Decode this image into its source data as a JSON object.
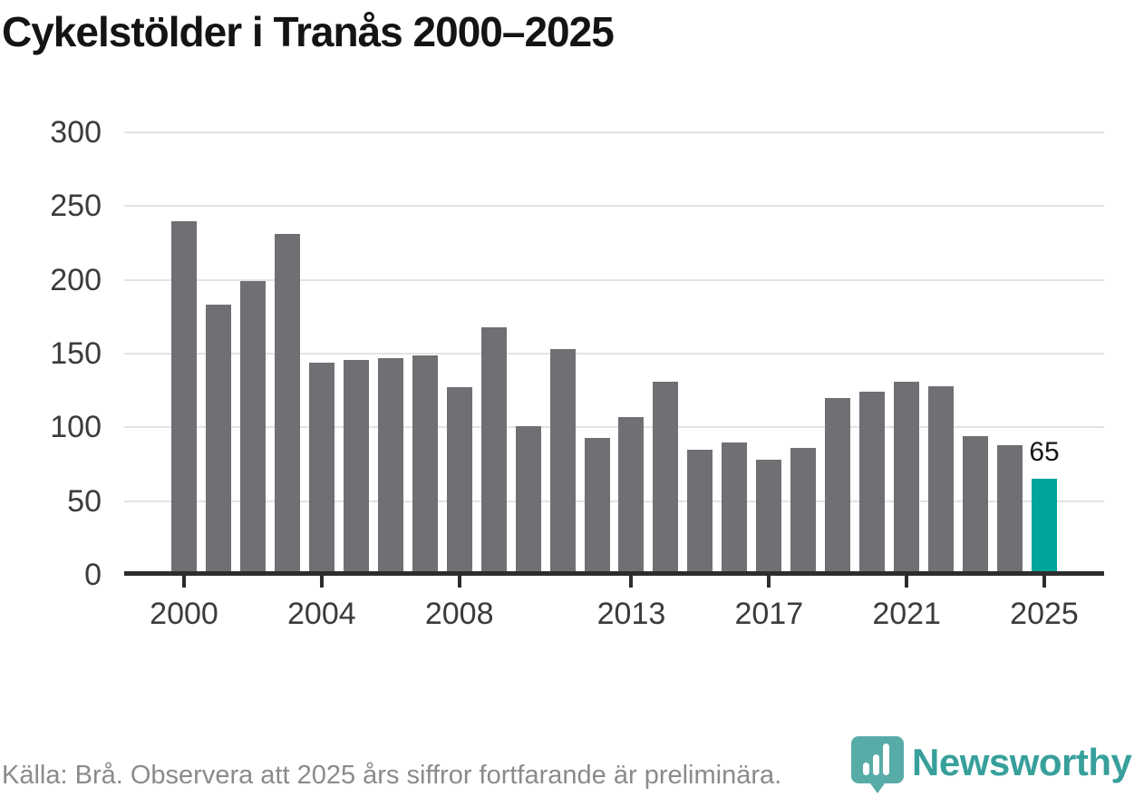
{
  "title": "Cykelstölder i Tranås 2000–2025",
  "chart_data": {
    "type": "bar",
    "title": "Cykelstölder i Tranås 2000–2025",
    "categories": [
      2000,
      2001,
      2002,
      2003,
      2004,
      2005,
      2006,
      2007,
      2008,
      2009,
      2010,
      2011,
      2012,
      2013,
      2014,
      2015,
      2016,
      2017,
      2018,
      2019,
      2020,
      2021,
      2022,
      2023,
      2024,
      2025
    ],
    "values": [
      240,
      183,
      199,
      231,
      144,
      146,
      147,
      149,
      127,
      168,
      101,
      153,
      93,
      107,
      131,
      85,
      90,
      78,
      86,
      120,
      124,
      131,
      128,
      94,
      88,
      65
    ],
    "xlabel": "",
    "ylabel": "",
    "ylim": [
      0,
      300
    ],
    "grid": true,
    "legend": "none",
    "y_ticks": [
      0,
      50,
      100,
      150,
      200,
      250,
      300
    ],
    "x_tick_labels": [
      "2000",
      "2004",
      "2008",
      "2013",
      "2017",
      "2021",
      "2025"
    ],
    "bar_color": "#706f74",
    "highlight": {
      "year": 2025,
      "value": 65,
      "label": "65",
      "color": "#00a49b"
    }
  },
  "footer": {
    "source": "Källa: Brå. Observera att 2025 års siffror fortfarande är preliminära.",
    "logo_text": "Newsworthy",
    "logo_icon": "bar-chart-pin-icon",
    "logo_color": "#38a09b"
  }
}
